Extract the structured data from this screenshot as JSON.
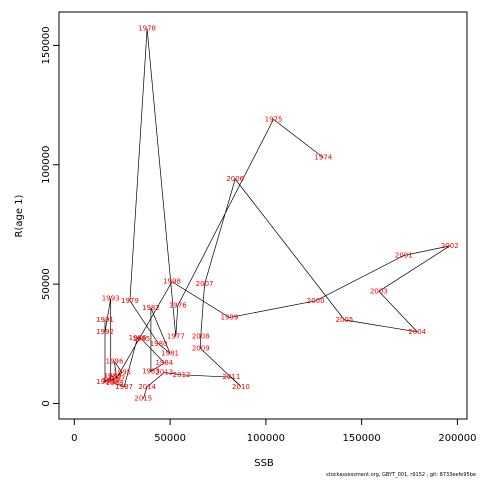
{
  "chart_data": {
    "type": "line",
    "xlabel": "SSB",
    "ylabel": "R(age 1)",
    "xlim": [
      -8000,
      205000
    ],
    "ylim": [
      -6500,
      164000
    ],
    "xticks": [
      0,
      50000,
      100000,
      150000,
      200000
    ],
    "yticks": [
      0,
      50000,
      100000,
      150000
    ],
    "grid": false,
    "points": [
      {
        "year": "1974",
        "x": 130000,
        "y": 103000
      },
      {
        "year": "1975",
        "x": 104000,
        "y": 119000
      },
      {
        "year": "1976",
        "x": 54000,
        "y": 41000
      },
      {
        "year": "1977",
        "x": 53000,
        "y": 28000
      },
      {
        "year": "1978",
        "x": 38000,
        "y": 157000
      },
      {
        "year": "1979",
        "x": 29000,
        "y": 43000
      },
      {
        "year": "1980",
        "x": 44000,
        "y": 25000
      },
      {
        "year": "1981",
        "x": 50000,
        "y": 21000
      },
      {
        "year": "1982",
        "x": 40000,
        "y": 40000
      },
      {
        "year": "1983",
        "x": 40000,
        "y": 13500
      },
      {
        "year": "1984",
        "x": 47000,
        "y": 17000
      },
      {
        "year": "1985",
        "x": 35000,
        "y": 27000
      },
      {
        "year": "1986",
        "x": 33000,
        "y": 27500
      },
      {
        "year": "1987",
        "x": 26000,
        "y": 7000
      },
      {
        "year": "1988",
        "x": 21000,
        "y": 8500
      },
      {
        "year": "1989",
        "x": 20000,
        "y": 11500
      },
      {
        "year": "1990",
        "x": 16000,
        "y": 9000
      },
      {
        "year": "1991",
        "x": 16000,
        "y": 35000
      },
      {
        "year": "1992",
        "x": 16000,
        "y": 30000
      },
      {
        "year": "1993",
        "x": 19000,
        "y": 44000
      },
      {
        "year": "1994",
        "x": 19000,
        "y": 9500
      },
      {
        "year": "1995",
        "x": 25000,
        "y": 13000
      },
      {
        "year": "1996",
        "x": 21000,
        "y": 17500
      },
      {
        "year": "1997",
        "x": 22000,
        "y": 10500
      },
      {
        "year": "1998",
        "x": 51000,
        "y": 51000
      },
      {
        "year": "1999",
        "x": 81000,
        "y": 36000
      },
      {
        "year": "2000",
        "x": 126000,
        "y": 43000
      },
      {
        "year": "2001",
        "x": 172000,
        "y": 62000
      },
      {
        "year": "2002",
        "x": 196000,
        "y": 66000
      },
      {
        "year": "2003",
        "x": 159000,
        "y": 47000
      },
      {
        "year": "2004",
        "x": 179000,
        "y": 30000
      },
      {
        "year": "2005",
        "x": 141000,
        "y": 35000
      },
      {
        "year": "2006",
        "x": 84000,
        "y": 94000
      },
      {
        "year": "2007",
        "x": 68000,
        "y": 50000
      },
      {
        "year": "2008",
        "x": 66000,
        "y": 28000
      },
      {
        "year": "2009",
        "x": 66000,
        "y": 23000
      },
      {
        "year": "2010",
        "x": 87000,
        "y": 7000
      },
      {
        "year": "2011",
        "x": 82000,
        "y": 11000
      },
      {
        "year": "2012",
        "x": 56000,
        "y": 12000
      },
      {
        "year": "2013",
        "x": 47000,
        "y": 13000
      },
      {
        "year": "2014",
        "x": 38000,
        "y": 7000
      },
      {
        "year": "2015",
        "x": 36000,
        "y": 2000
      }
    ]
  },
  "footer": {
    "text": "stockassessment.org, GBYT_001, r9152 , git: 8733eefe95be"
  }
}
